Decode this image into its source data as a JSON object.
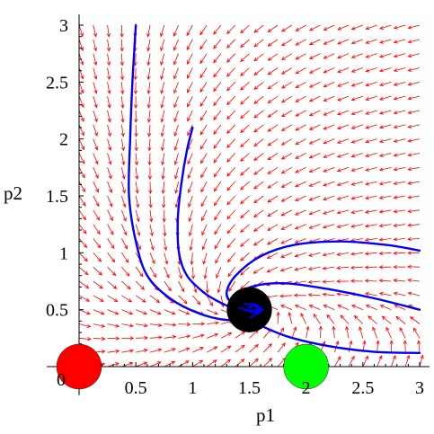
{
  "chart_data": {
    "type": "phase-portrait",
    "xlabel": "p1",
    "ylabel": "p2",
    "xlim": [
      0,
      3
    ],
    "ylim": [
      0,
      3
    ],
    "origin_label": "0",
    "xticks": [
      {
        "value": 0.5,
        "label": "0.5"
      },
      {
        "value": 1,
        "label": "1"
      },
      {
        "value": 1.5,
        "label": "1.5"
      },
      {
        "value": 2,
        "label": "2"
      },
      {
        "value": 2.5,
        "label": "2.5"
      },
      {
        "value": 3,
        "label": "3"
      }
    ],
    "yticks": [
      {
        "value": 0.5,
        "label": "0.5"
      },
      {
        "value": 1,
        "label": "1"
      },
      {
        "value": 1.5,
        "label": "1.5"
      },
      {
        "value": 2,
        "label": "2"
      },
      {
        "value": 2.5,
        "label": "2.5"
      },
      {
        "value": 3,
        "label": "3"
      }
    ],
    "vector_field": {
      "color": "#ff0000",
      "grid_x": {
        "start": 0,
        "end": 3,
        "count": 25
      },
      "grid_y": {
        "start": 0,
        "end": 3,
        "count": 25
      },
      "equilibrium": [
        1.5,
        0.5
      ]
    },
    "trajectories": {
      "color": "#0000ff",
      "curves": [
        [
          [
            0.5,
            3.0
          ],
          [
            0.47,
            2.5
          ],
          [
            0.45,
            2.0
          ],
          [
            0.44,
            1.5
          ],
          [
            0.5,
            1.1
          ],
          [
            0.6,
            0.8
          ],
          [
            0.8,
            0.6
          ],
          [
            1.05,
            0.47
          ],
          [
            1.3,
            0.41
          ],
          [
            1.5,
            0.43
          ],
          [
            1.6,
            0.48
          ],
          [
            1.55,
            0.54
          ],
          [
            1.48,
            0.52
          ]
        ],
        [
          [
            1.0,
            2.1
          ],
          [
            0.95,
            1.9
          ],
          [
            0.9,
            1.6
          ],
          [
            0.87,
            1.3
          ],
          [
            0.88,
            1.0
          ],
          [
            0.95,
            0.8
          ],
          [
            1.1,
            0.65
          ],
          [
            1.25,
            0.56
          ],
          [
            1.4,
            0.5
          ],
          [
            1.55,
            0.47
          ],
          [
            1.62,
            0.5
          ],
          [
            1.55,
            0.55
          ],
          [
            1.5,
            0.51
          ]
        ],
        [
          [
            3.0,
            1.02
          ],
          [
            2.7,
            1.07
          ],
          [
            2.3,
            1.1
          ],
          [
            1.9,
            1.07
          ],
          [
            1.6,
            0.97
          ],
          [
            1.38,
            0.8
          ],
          [
            1.3,
            0.65
          ],
          [
            1.35,
            0.55
          ],
          [
            1.45,
            0.5
          ],
          [
            1.55,
            0.47
          ],
          [
            1.6,
            0.52
          ],
          [
            1.52,
            0.54
          ]
        ],
        [
          [
            3.0,
            0.5
          ],
          [
            2.6,
            0.6
          ],
          [
            2.2,
            0.68
          ],
          [
            1.85,
            0.73
          ],
          [
            1.6,
            0.72
          ],
          [
            1.42,
            0.66
          ],
          [
            1.35,
            0.58
          ],
          [
            1.4,
            0.52
          ],
          [
            1.5,
            0.49
          ],
          [
            1.58,
            0.5
          ],
          [
            1.54,
            0.54
          ]
        ],
        [
          [
            3.0,
            0.12
          ],
          [
            2.6,
            0.13
          ],
          [
            2.2,
            0.18
          ],
          [
            1.85,
            0.26
          ],
          [
            1.6,
            0.36
          ],
          [
            1.45,
            0.44
          ],
          [
            1.4,
            0.5
          ],
          [
            1.45,
            0.55
          ],
          [
            1.55,
            0.55
          ],
          [
            1.57,
            0.5
          ],
          [
            1.5,
            0.48
          ]
        ]
      ]
    },
    "points": [
      {
        "x": 0,
        "y": 0,
        "color": "#ff0000"
      },
      {
        "x": 2,
        "y": 0,
        "color": "#00ff00"
      },
      {
        "x": 1.5,
        "y": 0.5,
        "color": "#000000"
      }
    ]
  }
}
